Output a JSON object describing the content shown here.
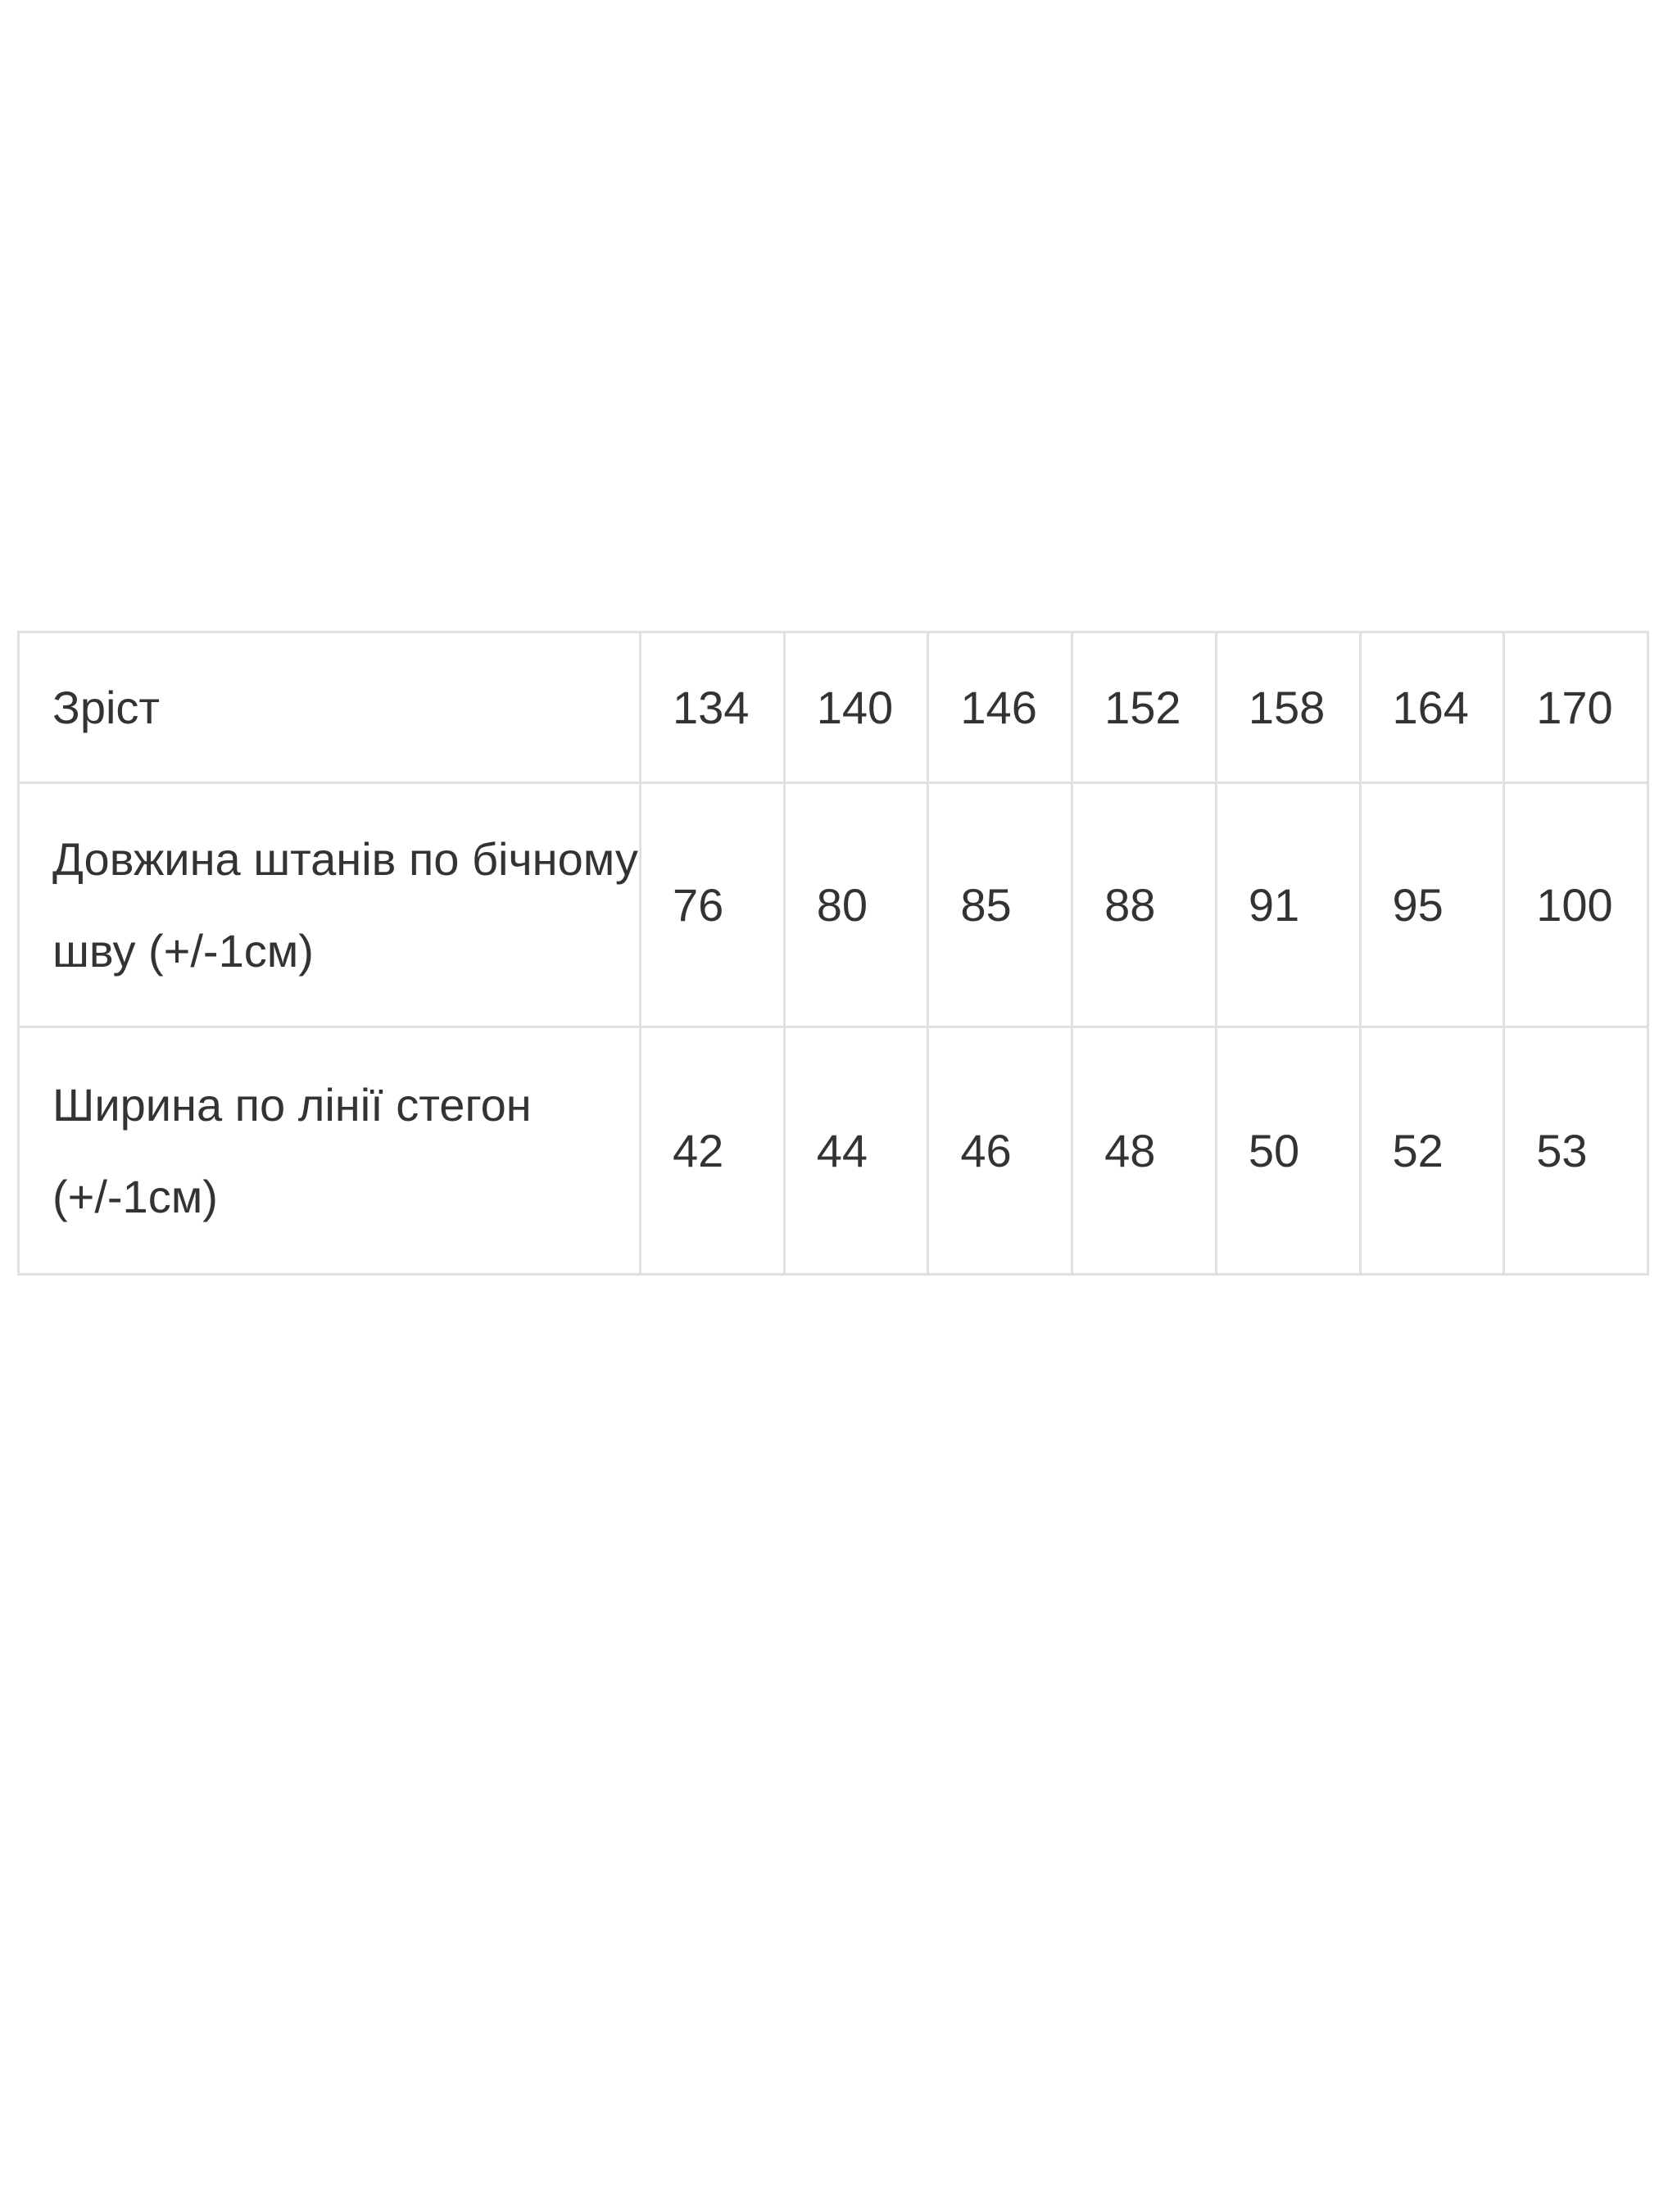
{
  "table": {
    "rows": [
      {
        "label": "Зріст",
        "values": [
          "134",
          "140",
          "146",
          "152",
          "158",
          "164",
          "170"
        ]
      },
      {
        "label": "Довжина штанів по бічному шву (+/-1см)",
        "values": [
          "76",
          "80",
          "85",
          "88",
          "91",
          "95",
          "100"
        ]
      },
      {
        "label": "Ширина по лінії стегон (+/-1см)",
        "values": [
          "42",
          "44",
          "46",
          "48",
          "50",
          "52",
          "53"
        ]
      }
    ]
  }
}
